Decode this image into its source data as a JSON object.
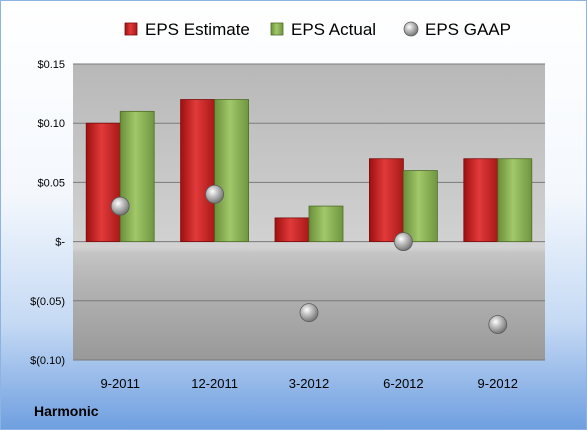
{
  "company": "Harmonic",
  "chart_data": {
    "type": "bar",
    "categories": [
      "9-2011",
      "12-2011",
      "3-2012",
      "6-2012",
      "9-2012"
    ],
    "series": [
      {
        "name": "EPS Estimate",
        "kind": "bar",
        "color": "#d2262a",
        "values": [
          0.1,
          0.12,
          0.02,
          0.07,
          0.07
        ]
      },
      {
        "name": "EPS Actual",
        "kind": "bar",
        "color": "#8cb453",
        "values": [
          0.11,
          0.12,
          0.03,
          0.06,
          0.07
        ]
      },
      {
        "name": "EPS GAAP",
        "kind": "scatter",
        "color": "#a6a6a6",
        "values": [
          0.03,
          0.04,
          -0.06,
          0.0,
          -0.07
        ]
      }
    ],
    "yticks": [
      {
        "value": 0.15,
        "label": "$0.15"
      },
      {
        "value": 0.1,
        "label": "$0.10"
      },
      {
        "value": 0.05,
        "label": "$0.05"
      },
      {
        "value": 0,
        "label": "$-"
      },
      {
        "value": -0.05,
        "label": "$(0.05)"
      },
      {
        "value": -0.1,
        "label": "$(0.10)"
      }
    ],
    "ylim": [
      -0.1,
      0.15
    ],
    "grid": true,
    "legend": "top"
  }
}
